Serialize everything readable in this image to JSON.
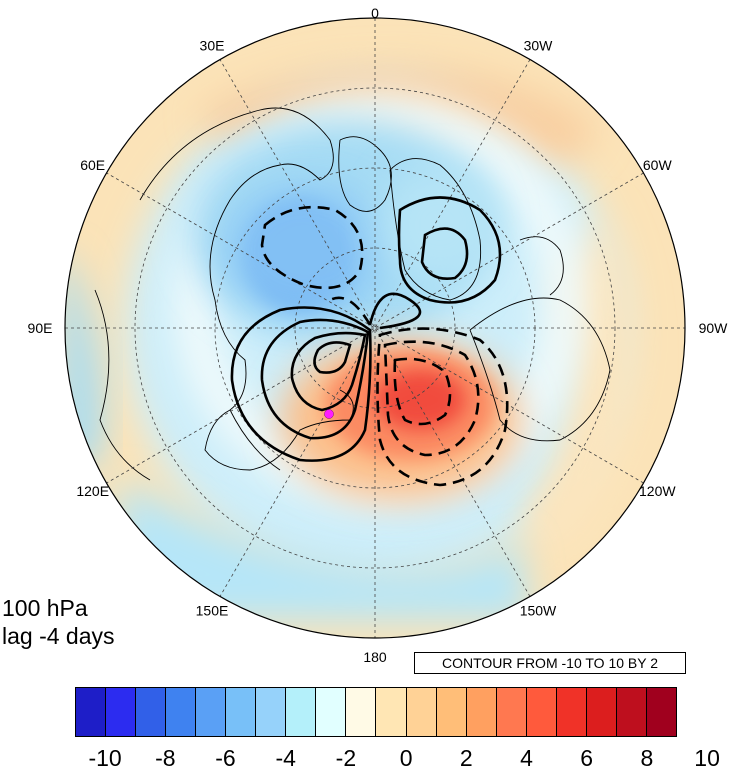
{
  "figure": {
    "level_label": "100 hPa",
    "lag_label": "lag -4 days",
    "contour_note": "CONTOUR FROM -10 TO 10 BY 2"
  },
  "longitude_labels": [
    {
      "text": "0",
      "angle": 0
    },
    {
      "text": "30W",
      "angle": 30
    },
    {
      "text": "60W",
      "angle": 60
    },
    {
      "text": "90W",
      "angle": 90
    },
    {
      "text": "120W",
      "angle": 120
    },
    {
      "text": "150W",
      "angle": 150
    },
    {
      "text": "180",
      "angle": 180
    },
    {
      "text": "150E",
      "angle": 210
    },
    {
      "text": "120E",
      "angle": 240
    },
    {
      "text": "90E",
      "angle": 270
    },
    {
      "text": "60E",
      "angle": 300
    },
    {
      "text": "30E",
      "angle": 330
    }
  ],
  "colorbar": {
    "colors": [
      "#1e1ec8",
      "#2c2cf0",
      "#3160e8",
      "#3f82f0",
      "#5aa0f5",
      "#78c0f8",
      "#96d2fa",
      "#b4f0fa",
      "#e1ffff",
      "#fffae6",
      "#ffe6b4",
      "#ffd296",
      "#ffbe78",
      "#ffa060",
      "#ff7850",
      "#ff5a3c",
      "#f03228",
      "#dc1e1e",
      "#be0f1e",
      "#a0001e"
    ],
    "ticks": [
      "-10",
      "-8",
      "-6",
      "-4",
      "-2",
      "0",
      "2",
      "4",
      "6",
      "8",
      "10"
    ]
  },
  "colors": {
    "map_background": "#cdeefa",
    "contour": "#000000",
    "marker": "#ff1eff"
  }
}
